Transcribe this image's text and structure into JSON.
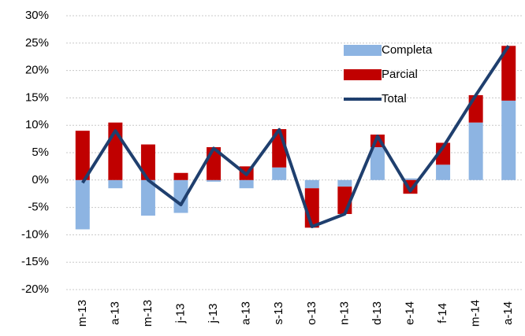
{
  "chart_data": {
    "type": "bar",
    "categories": [
      "m-13",
      "a-13",
      "m-13",
      "j-13",
      "j-13",
      "a-13",
      "s-13",
      "o-13",
      "n-13",
      "d-13",
      "e-14",
      "f-14",
      "m-14",
      "a-14"
    ],
    "series": [
      {
        "name": "Completa",
        "color": "#8db4e2",
        "values": [
          -9,
          -1.5,
          -6.5,
          -6,
          -0.3,
          -1.5,
          2.3,
          -1.5,
          -1.2,
          6,
          0.3,
          2.8,
          10.5,
          14.5
        ]
      },
      {
        "name": "Parcial",
        "color": "#c00000",
        "values": [
          9,
          10.5,
          6.5,
          1.3,
          6,
          2.5,
          7,
          -7.2,
          -5,
          2.3,
          -2.5,
          4,
          5,
          10
        ]
      },
      {
        "name": "Total",
        "type": "line",
        "color": "#1f3f6e",
        "values": [
          -0.5,
          9,
          0,
          -4.5,
          5.8,
          1,
          9.2,
          -8.5,
          -6.2,
          8,
          -2,
          6,
          15.5,
          24.5
        ]
      }
    ],
    "ylim": [
      -20,
      30
    ],
    "yticks": [
      {
        "value": -20,
        "label": "-20%"
      },
      {
        "value": -15,
        "label": "-15%"
      },
      {
        "value": -10,
        "label": "-10%"
      },
      {
        "value": -5,
        "label": "-5%"
      },
      {
        "value": 0,
        "label": "0%"
      },
      {
        "value": 5,
        "label": "5%"
      },
      {
        "value": 10,
        "label": "10%"
      },
      {
        "value": 15,
        "label": "15%"
      },
      {
        "value": 20,
        "label": "20%"
      },
      {
        "value": 25,
        "label": "25%"
      },
      {
        "value": 30,
        "label": "30%"
      }
    ],
    "grid": true,
    "legend": "top-right"
  }
}
